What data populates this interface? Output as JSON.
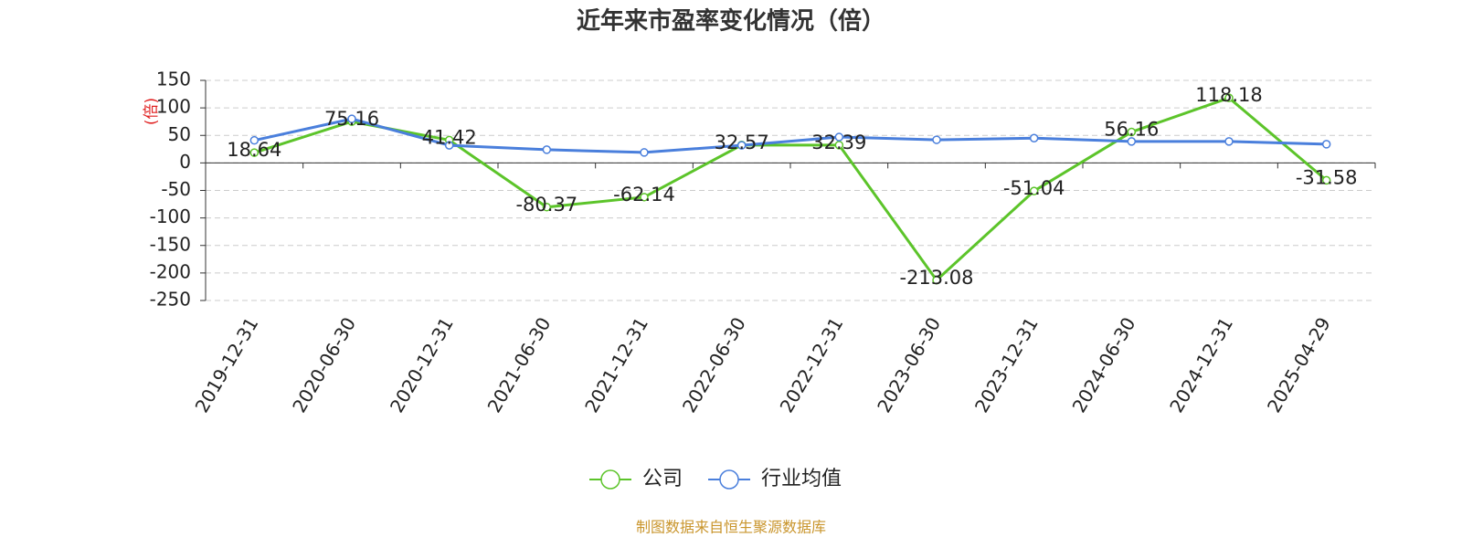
{
  "chart_data": {
    "type": "line",
    "title": "近年来市盈率变化情况（倍）",
    "y_label": "(倍)",
    "source": "制图数据来自恒生聚源数据库",
    "categories": [
      "2019-12-31",
      "2020-06-30",
      "2020-12-31",
      "2021-06-30",
      "2021-12-31",
      "2022-06-30",
      "2022-12-31",
      "2023-06-30",
      "2023-12-31",
      "2024-06-30",
      "2024-12-31",
      "2025-04-29"
    ],
    "series": [
      {
        "name": "公司",
        "color": "#5cc42a",
        "values": [
          18.64,
          75.16,
          41.42,
          -80.37,
          -62.14,
          32.57,
          32.39,
          -213.08,
          -51.04,
          56.16,
          118.18,
          -31.58
        ],
        "show_labels": true
      },
      {
        "name": "行业均值",
        "color": "#4a7fdc",
        "values": [
          41,
          80,
          32,
          24,
          19,
          32,
          47,
          42,
          45,
          39,
          39,
          34
        ],
        "show_labels": false
      }
    ],
    "ylim": [
      -250,
      150
    ],
    "yticks": [
      -250,
      -200,
      -150,
      -100,
      -50,
      0,
      50,
      100,
      150
    ],
    "grid": true
  }
}
